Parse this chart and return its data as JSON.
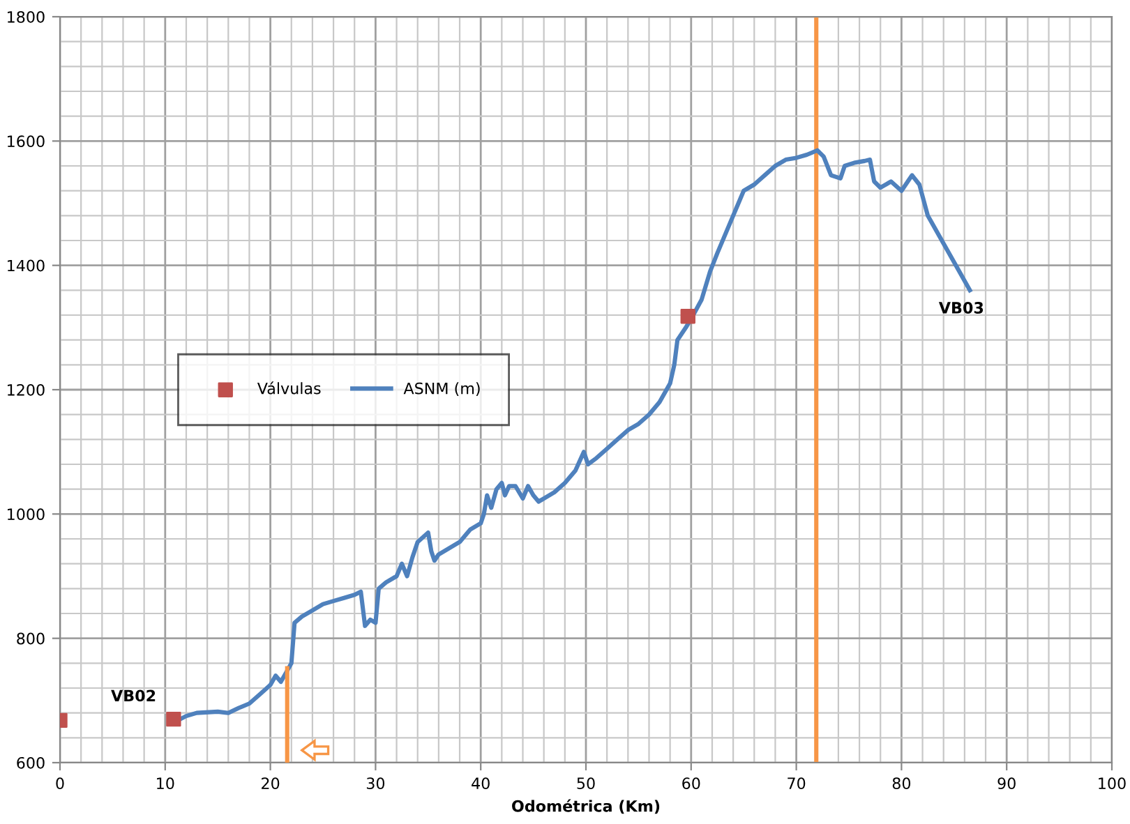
{
  "chart_data": {
    "type": "line",
    "xlabel": "Odométrica (Km)",
    "xlim": [
      0,
      100
    ],
    "xticks": [
      0,
      10,
      20,
      30,
      40,
      50,
      60,
      70,
      80,
      90,
      100
    ],
    "ylim": [
      600,
      1800
    ],
    "yticks": [
      600,
      800,
      1000,
      1200,
      1400,
      1600,
      1800
    ],
    "grid": true,
    "legend": "center left",
    "series": [
      {
        "name": "Válvulas",
        "type": "scatter",
        "marker": "square",
        "color": "#c0504d",
        "x": [
          0,
          10.8,
          59.7
        ],
        "values": [
          668,
          670,
          1318
        ]
      },
      {
        "name": "ASNM (m)",
        "marker": "none",
        "color": "#4f81bd",
        "x": [
          11.2,
          12,
          13,
          15,
          16,
          17,
          18,
          19,
          20,
          20.5,
          21,
          21.5,
          22,
          22.3,
          23,
          24,
          25,
          26,
          27,
          28,
          28.6,
          29,
          29.5,
          30,
          30.3,
          31,
          32,
          32.5,
          33,
          33.5,
          34,
          35,
          35.3,
          35.6,
          36,
          37,
          38,
          39,
          40,
          40.3,
          40.6,
          41,
          41.5,
          42,
          42.3,
          42.7,
          43.3,
          44,
          44.5,
          45,
          45.5,
          46,
          47,
          48,
          49,
          49.8,
          50.2,
          51,
          52,
          53,
          54,
          55,
          56,
          57,
          58,
          58.4,
          58.7,
          59.5,
          60.2,
          61,
          61.8,
          62.5,
          63.5,
          64.5,
          65,
          66,
          67,
          68,
          69,
          70,
          71,
          72,
          72.6,
          73.3,
          74.2,
          74.6,
          75.5,
          76.5,
          77,
          77.4,
          78,
          79,
          80,
          81,
          81.7,
          82.5,
          83.5,
          84.5,
          85.5,
          86.5
        ],
        "values": [
          668,
          675,
          680,
          682,
          680,
          688,
          695,
          710,
          725,
          740,
          730,
          745,
          760,
          825,
          835,
          845,
          855,
          860,
          865,
          870,
          875,
          820,
          830,
          825,
          880,
          890,
          900,
          920,
          900,
          930,
          955,
          970,
          940,
          925,
          935,
          945,
          955,
          975,
          985,
          1000,
          1030,
          1010,
          1040,
          1050,
          1030,
          1045,
          1045,
          1025,
          1045,
          1030,
          1020,
          1025,
          1035,
          1050,
          1070,
          1100,
          1080,
          1090,
          1105,
          1120,
          1135,
          1145,
          1160,
          1180,
          1210,
          1240,
          1280,
          1300,
          1320,
          1345,
          1390,
          1420,
          1460,
          1500,
          1520,
          1530,
          1545,
          1560,
          1570,
          1573,
          1578,
          1585,
          1575,
          1545,
          1540,
          1560,
          1565,
          1568,
          1570,
          1535,
          1525,
          1535,
          1520,
          1545,
          1530,
          1480,
          1450,
          1420,
          1390,
          1360
        ]
      },
      {
        "marker": "none",
        "color": "#f79646",
        "x": [
          21.6,
          21.6
        ],
        "values": [
          600,
          752
        ]
      }
    ],
    "ref_lines": [
      {
        "axis": "x",
        "value": 71.9,
        "color": "#f79646"
      }
    ],
    "annotations": [
      "VB02",
      "VB03"
    ]
  }
}
